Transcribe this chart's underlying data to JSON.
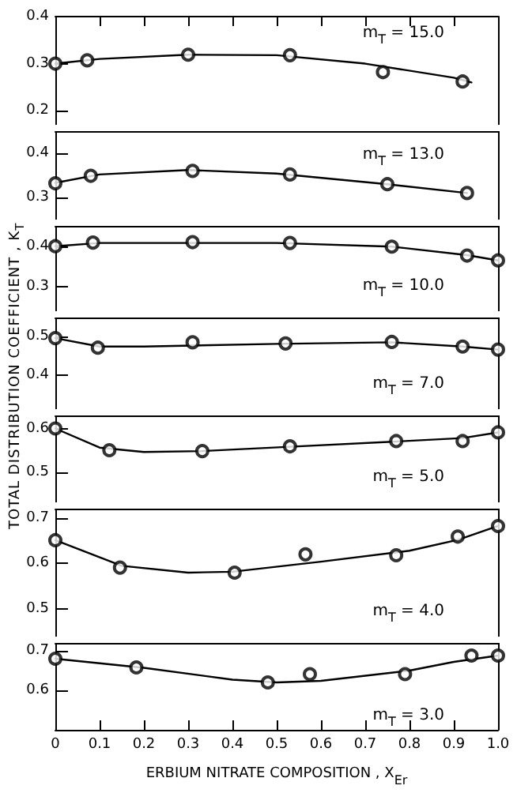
{
  "chart_data": [
    {
      "type": "scatter",
      "annotations": [
        "m$_{T}$ = 15.0"
      ],
      "xlim": [
        0,
        1
      ],
      "xticks": [
        0,
        0.1,
        0.2,
        0.3,
        0.4,
        0.5,
        0.6,
        0.7,
        0.8,
        0.9,
        1
      ],
      "ylim": [
        0.17,
        0.4
      ],
      "yticks": [
        0.2,
        0.3,
        0.4
      ],
      "tick_labels": "y",
      "marker": "circle",
      "series": [
        {
          "type": "scatter",
          "color": "#000000",
          "x": [
            0,
            0.072,
            0.3,
            0.53,
            0.74,
            0.92
          ],
          "values": [
            0.3,
            0.307,
            0.319,
            0.318,
            0.282,
            0.262
          ]
        },
        {
          "type": "line",
          "color": "#000000",
          "marker": "none",
          "line_style": "solid",
          "x": [
            0,
            0.1,
            0.3,
            0.5,
            0.7,
            0.9,
            0.94
          ],
          "values": [
            0.3,
            0.31,
            0.319,
            0.318,
            0.3,
            0.27,
            0.26
          ]
        }
      ]
    },
    {
      "type": "scatter",
      "annotations": [
        "m$_{T}$ = 13.0"
      ],
      "xlim": [
        0,
        1
      ],
      "ylim": [
        0.25,
        0.45
      ],
      "yticks": [
        0.3,
        0.4
      ],
      "tick_labels": "y",
      "marker": "circle",
      "series": [
        {
          "type": "scatter",
          "color": "#000000",
          "x": [
            0,
            0.08,
            0.31,
            0.53,
            0.75,
            0.93
          ],
          "values": [
            0.332,
            0.349,
            0.36,
            0.352,
            0.33,
            0.31
          ]
        },
        {
          "type": "line",
          "color": "#000000",
          "marker": "none",
          "line_style": "solid",
          "x": [
            0,
            0.1,
            0.3,
            0.5,
            0.75,
            0.93
          ],
          "values": [
            0.333,
            0.352,
            0.362,
            0.354,
            0.33,
            0.31
          ]
        }
      ]
    },
    {
      "type": "scatter",
      "annotations": [
        "m$_{T}$ = 10.0"
      ],
      "xlim": [
        0,
        1
      ],
      "ylim": [
        0.24,
        0.45
      ],
      "yticks": [
        0.3,
        0.4
      ],
      "tick_labels": "y",
      "marker": "circle",
      "series": [
        {
          "type": "scatter",
          "color": "#000000",
          "x": [
            0,
            0.085,
            0.31,
            0.53,
            0.76,
            0.93,
            1
          ],
          "values": [
            0.4,
            0.409,
            0.41,
            0.408,
            0.399,
            0.377,
            0.365
          ]
        },
        {
          "type": "line",
          "color": "#000000",
          "marker": "none",
          "line_style": "solid",
          "x": [
            0,
            0.1,
            0.5,
            0.76,
            0.93,
            1
          ],
          "values": [
            0.4,
            0.408,
            0.408,
            0.399,
            0.378,
            0.365
          ]
        }
      ]
    },
    {
      "type": "scatter",
      "annotations": [
        "m$_{T}$ = 7.0"
      ],
      "ylabel": "TOTAL DISTRIBUTION COEFFICIENT , K$_{T}$",
      "xlim": [
        0,
        1
      ],
      "ylim": [
        0.31,
        0.55
      ],
      "yticks": [
        0.4,
        0.5
      ],
      "tick_labels": "y",
      "marker": "circle",
      "series": [
        {
          "type": "scatter",
          "color": "#000000",
          "x": [
            0,
            0.096,
            0.31,
            0.52,
            0.76,
            0.92,
            1
          ],
          "values": [
            0.496,
            0.471,
            0.485,
            0.482,
            0.486,
            0.474,
            0.466
          ]
        },
        {
          "type": "line",
          "color": "#000000",
          "marker": "none",
          "line_style": "solid",
          "x": [
            0,
            0.1,
            0.2,
            0.5,
            0.76,
            0.92,
            1
          ],
          "values": [
            0.496,
            0.474,
            0.474,
            0.481,
            0.485,
            0.474,
            0.466
          ]
        }
      ]
    },
    {
      "type": "scatter",
      "annotations": [
        "m$_{T}$ = 5.0"
      ],
      "xlim": [
        0,
        1
      ],
      "ylim": [
        0.43,
        0.63
      ],
      "yticks": [
        0.5,
        0.6
      ],
      "tick_labels": "y",
      "marker": "circle",
      "series": [
        {
          "type": "scatter",
          "color": "#000000",
          "x": [
            0,
            0.122,
            0.332,
            0.53,
            0.77,
            0.92,
            1
          ],
          "values": [
            0.6,
            0.55,
            0.548,
            0.559,
            0.571,
            0.571,
            0.591
          ]
        },
        {
          "type": "line",
          "color": "#000000",
          "marker": "none",
          "line_style": "solid",
          "x": [
            0,
            0.1,
            0.2,
            0.33,
            0.53,
            0.77,
            0.92,
            1
          ],
          "values": [
            0.6,
            0.556,
            0.546,
            0.548,
            0.558,
            0.57,
            0.578,
            0.591
          ]
        }
      ]
    },
    {
      "type": "scatter",
      "annotations": [
        "m$_{T}$ = 4.0"
      ],
      "xlim": [
        0,
        1
      ],
      "ylim": [
        0.44,
        0.72
      ],
      "yticks": [
        0.5,
        0.6,
        0.7
      ],
      "tick_labels": "y",
      "marker": "circle",
      "series": [
        {
          "type": "scatter",
          "color": "#000000",
          "x": [
            0,
            0.146,
            0.405,
            0.565,
            0.77,
            0.909,
            1
          ],
          "values": [
            0.651,
            0.591,
            0.58,
            0.62,
            0.618,
            0.659,
            0.682
          ]
        },
        {
          "type": "line",
          "color": "#000000",
          "marker": "none",
          "line_style": "solid",
          "x": [
            0,
            0.15,
            0.3,
            0.4,
            0.6,
            0.8,
            0.91,
            1
          ],
          "values": [
            0.651,
            0.595,
            0.58,
            0.582,
            0.604,
            0.628,
            0.652,
            0.682
          ]
        }
      ]
    },
    {
      "type": "scatter",
      "annotations": [
        "m$_{T}$ = 3.0"
      ],
      "xlabel": "ERBIUM NITRATE COMPOSITION , X$_{Er}$",
      "xlim": [
        0,
        1
      ],
      "xticks": [
        0,
        0.1,
        0.2,
        0.3,
        0.4,
        0.5,
        0.6,
        0.7,
        0.8,
        0.9,
        {
          "value": 1,
          "label": "1.0"
        }
      ],
      "ylim": [
        0.5,
        0.72
      ],
      "yticks": [
        0.6,
        0.7
      ],
      "marker": "circle",
      "series": [
        {
          "type": "scatter",
          "color": "#000000",
          "x": [
            0,
            0.183,
            0.48,
            0.575,
            0.79,
            0.94,
            1
          ],
          "values": [
            0.68,
            0.658,
            0.62,
            0.641,
            0.641,
            0.688,
            0.688
          ]
        },
        {
          "type": "line",
          "color": "#000000",
          "marker": "none",
          "line_style": "solid",
          "x": [
            0,
            0.2,
            0.4,
            0.5,
            0.6,
            0.8,
            0.9,
            1
          ],
          "values": [
            0.68,
            0.657,
            0.627,
            0.62,
            0.624,
            0.65,
            0.672,
            0.688
          ]
        }
      ]
    }
  ]
}
